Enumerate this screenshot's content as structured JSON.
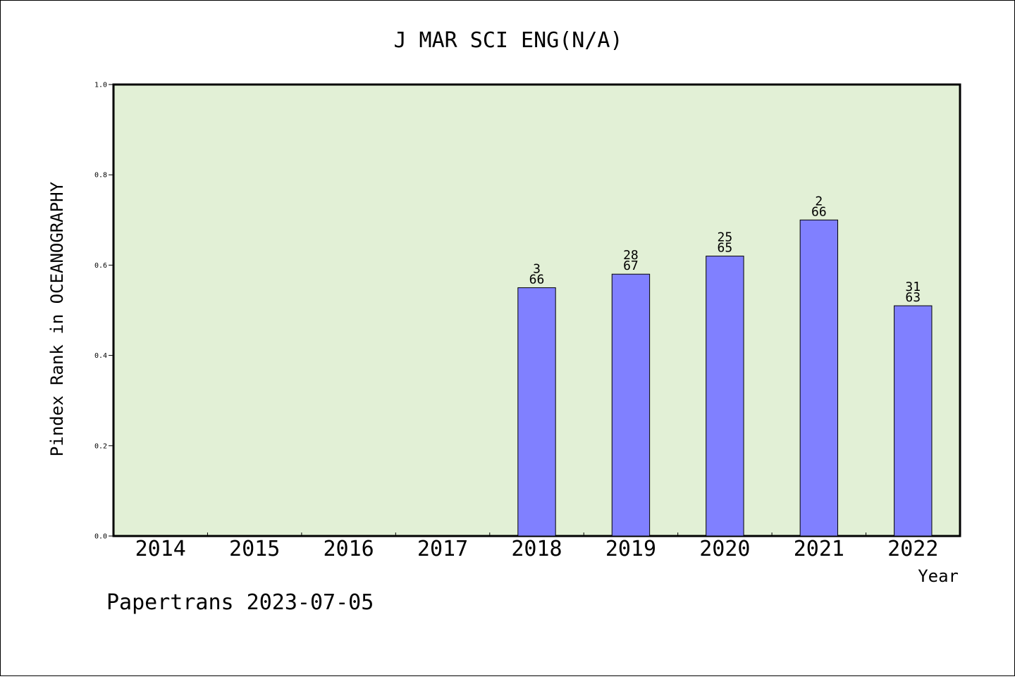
{
  "chart_data": {
    "type": "bar",
    "title": "J MAR SCI ENG(N/A)",
    "xlabel": "Year",
    "ylabel": "Pindex Rank in OCEANOGRAPHY",
    "categories": [
      "2014",
      "2015",
      "2016",
      "2017",
      "2018",
      "2019",
      "2020",
      "2021",
      "2022"
    ],
    "values": [
      null,
      null,
      null,
      null,
      0.55,
      0.58,
      0.62,
      0.7,
      0.51
    ],
    "rank_labels": [
      null,
      null,
      null,
      null,
      "3",
      "28",
      "25",
      "2",
      "31"
    ],
    "total_labels": [
      null,
      null,
      null,
      null,
      "66",
      "67",
      "65",
      "66",
      "63"
    ],
    "ylim": [
      0,
      1.0
    ],
    "yticks": [
      "0.0",
      "0.2",
      "0.4",
      "0.6",
      "0.8",
      "1.0"
    ],
    "grid": false,
    "colors": {
      "plot_background": "#e2f0d6",
      "bar_fill": "#8080ff",
      "bar_stroke": "#000000"
    }
  },
  "footer": "Papertrans 2023-07-05"
}
